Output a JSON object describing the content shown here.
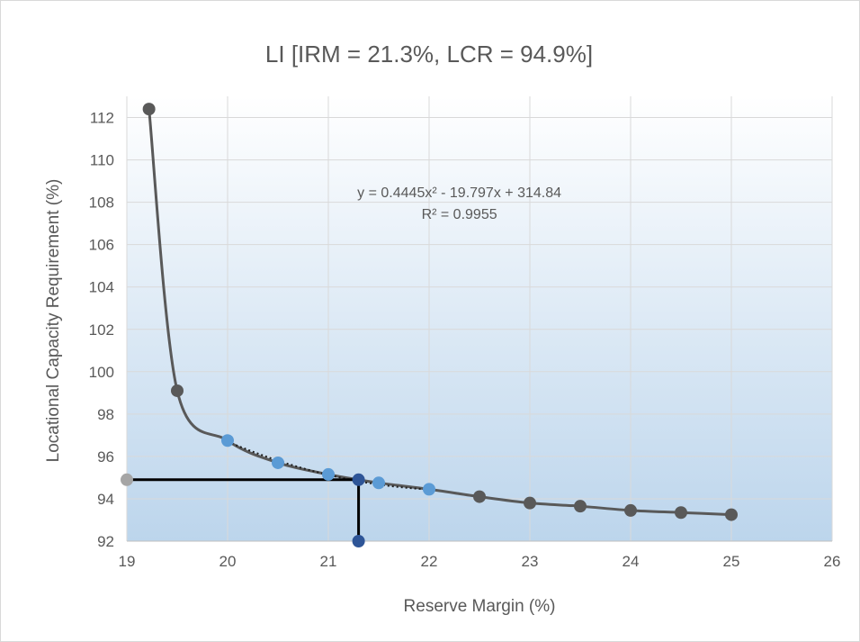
{
  "chart_data": {
    "type": "scatter",
    "title": "LI [IRM = 21.3%, LCR = 94.9%]",
    "xlabel": "Reserve Margin (%)",
    "ylabel": "Locational Capacity Requirement (%)",
    "xlim": [
      19,
      26
    ],
    "ylim": [
      92,
      113
    ],
    "x_ticks": [
      "19",
      "20",
      "21",
      "22",
      "23",
      "24",
      "25",
      "26"
    ],
    "y_ticks": [
      "92",
      "94",
      "96",
      "98",
      "100",
      "102",
      "104",
      "106",
      "108",
      "110",
      "112"
    ],
    "x_tick_values": [
      19,
      20,
      21,
      22,
      23,
      24,
      25,
      26
    ],
    "y_tick_values": [
      92,
      94,
      96,
      98,
      100,
      102,
      104,
      106,
      108,
      110,
      112
    ],
    "grid": true,
    "series": [
      {
        "type": "smooth-line-with-markers",
        "color": "#595959",
        "x": [
          19.22,
          19.5,
          20.0,
          20.5,
          21.0,
          21.3,
          21.5,
          22.0,
          22.5,
          23.0,
          23.5,
          24.0,
          24.5,
          25.0
        ],
        "y": [
          112.4,
          99.1,
          96.75,
          95.7,
          95.15,
          94.9,
          94.75,
          94.45,
          94.1,
          93.8,
          93.65,
          93.45,
          93.35,
          93.25
        ],
        "marker_x": [
          19.22,
          19.5,
          22.5,
          23.0,
          23.5,
          24.0,
          24.5,
          25.0
        ],
        "marker_y": [
          112.4,
          99.1,
          94.1,
          93.8,
          93.65,
          93.45,
          93.35,
          93.25
        ]
      },
      {
        "type": "scatter",
        "color": "#5b9bd5",
        "x": [
          20.0,
          20.5,
          21.0,
          21.5,
          22.0
        ],
        "y": [
          96.75,
          95.7,
          95.15,
          94.75,
          94.45
        ]
      },
      {
        "type": "point",
        "color": "#2e5597",
        "x": [
          21.3,
          21.3
        ],
        "y": [
          94.9,
          92.0
        ]
      },
      {
        "type": "point",
        "color": "#a5a5a5",
        "x": [
          19.0
        ],
        "y": [
          94.9
        ]
      }
    ],
    "trendline": {
      "kind": "polynomial-2",
      "style": "dotted",
      "coefficients": [
        0.4445,
        -19.797,
        314.84
      ],
      "x_range": [
        20.0,
        22.0
      ],
      "equation_label": "y = 0.4445x² - 19.797x + 314.84",
      "r2_label": "R² = 0.9955",
      "label_position_data": [
        22.3,
        108.5
      ]
    },
    "reference_lines": [
      {
        "from": [
          19.0,
          94.9
        ],
        "to": [
          21.3,
          94.9
        ],
        "color": "#000000"
      },
      {
        "from": [
          21.3,
          94.9
        ],
        "to": [
          21.3,
          92.0
        ],
        "color": "#000000"
      }
    ],
    "plot_background": {
      "top": "#ffffff",
      "bottom": "#bcd5ec"
    }
  }
}
